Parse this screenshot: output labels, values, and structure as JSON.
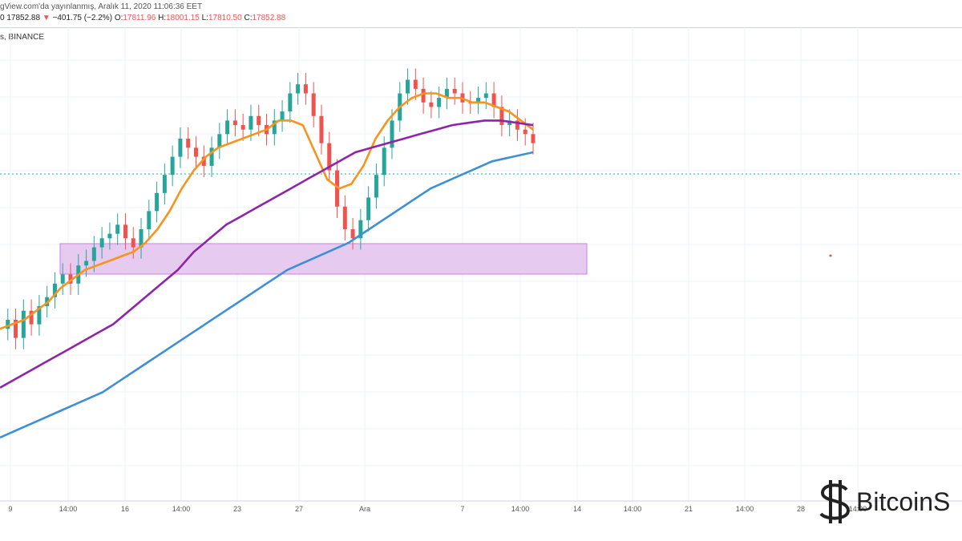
{
  "header": {
    "published_line": "gView.com'da yayınlanmış, Aralık 11, 2020 11:06:36 EET",
    "price_prefix": "0",
    "last_price": "17852.88",
    "change_arrow": "▼",
    "change": "−401.75 (−2.2%)",
    "o_label": "O:",
    "o_value": "17811.96",
    "h_label": "H:",
    "h_value": "18001.15",
    "l_label": "L:",
    "l_value": "17810.50",
    "c_label": "C:",
    "c_value": "17852.88",
    "exchange": "s, BINANCE"
  },
  "chart_data": {
    "type": "line",
    "xlabel": "",
    "ylabel": "",
    "x_ticks": [
      "9",
      "14:00",
      "16",
      "14:00",
      "23",
      "27",
      "Ara",
      "7",
      "14:00",
      "14",
      "14:00",
      "21",
      "14:00",
      "28",
      "14:00"
    ],
    "grid": true,
    "legend": "none",
    "candles_close_norm": [
      0.62,
      0.6,
      0.64,
      0.58,
      0.61,
      0.57,
      0.55,
      0.52,
      0.5,
      0.52,
      0.48,
      0.47,
      0.44,
      0.42,
      0.41,
      0.39,
      0.42,
      0.44,
      0.4,
      0.36,
      0.32,
      0.28,
      0.24,
      0.2,
      0.22,
      0.24,
      0.26,
      0.22,
      0.19,
      0.16,
      0.17,
      0.18,
      0.15,
      0.17,
      0.19,
      0.16,
      0.14,
      0.1,
      0.08,
      0.1,
      0.15,
      0.21,
      0.27,
      0.35,
      0.4,
      0.42,
      0.38,
      0.33,
      0.28,
      0.22,
      0.16,
      0.1,
      0.07,
      0.09,
      0.12,
      0.13,
      0.11,
      0.09,
      0.1,
      0.12,
      0.12,
      0.11,
      0.1,
      0.13,
      0.17,
      0.16,
      0.18,
      0.19,
      0.21
    ],
    "series": [
      {
        "color": "#f7941d",
        "values_norm": [
          0.62,
          0.61,
          0.6,
          0.58,
          0.56,
          0.53,
          0.51,
          0.49,
          0.48,
          0.47,
          0.46,
          0.45,
          0.43,
          0.4,
          0.36,
          0.31,
          0.27,
          0.24,
          0.22,
          0.21,
          0.2,
          0.19,
          0.18,
          0.16,
          0.16,
          0.17,
          0.23,
          0.29,
          0.31,
          0.3,
          0.26,
          0.2,
          0.16,
          0.13,
          0.11,
          0.1,
          0.1,
          0.11,
          0.11,
          0.12,
          0.12,
          0.13,
          0.14,
          0.16,
          0.18
        ]
      },
      {
        "color": "#8e24aa",
        "values_norm": [
          0.75,
          0.73,
          0.71,
          0.69,
          0.67,
          0.65,
          0.63,
          0.61,
          0.58,
          0.55,
          0.52,
          0.49,
          0.45,
          0.42,
          0.39,
          0.37,
          0.35,
          0.33,
          0.31,
          0.29,
          0.27,
          0.25,
          0.23,
          0.22,
          0.21,
          0.2,
          0.19,
          0.18,
          0.17,
          0.165,
          0.16,
          0.16,
          0.165,
          0.17
        ]
      },
      {
        "color": "#3d8fd9",
        "values_norm": [
          0.86,
          0.84,
          0.82,
          0.8,
          0.78,
          0.76,
          0.73,
          0.7,
          0.67,
          0.64,
          0.61,
          0.58,
          0.55,
          0.52,
          0.49,
          0.47,
          0.45,
          0.43,
          0.4,
          0.37,
          0.34,
          0.31,
          0.29,
          0.27,
          0.25,
          0.24,
          0.23
        ]
      }
    ],
    "zone": {
      "color": "#e6c8f0",
      "border": "#c77be0"
    },
    "price_line_color": "#20b2aa"
  },
  "watermark": {
    "text": "BitcoinS"
  }
}
